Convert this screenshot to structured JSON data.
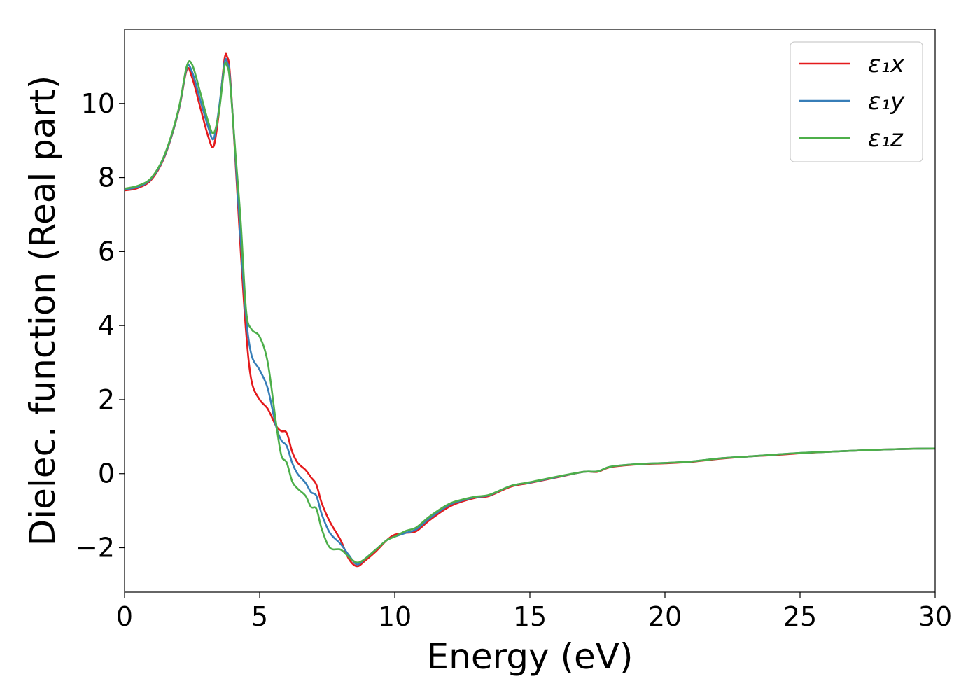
{
  "chart_data": {
    "type": "line",
    "xlabel": "Energy (eV)",
    "ylabel": "Dielec. function (Real part)",
    "xlim": [
      0,
      30
    ],
    "ylim": [
      -3.2,
      12.0
    ],
    "xticks": [
      0,
      5,
      10,
      15,
      20,
      25,
      30
    ],
    "yticks": [
      -2,
      0,
      2,
      4,
      6,
      8,
      10
    ],
    "ytick_labels": [
      "−2",
      "0",
      "2",
      "4",
      "6",
      "8",
      "10"
    ],
    "grid": false,
    "legend_position": "top-right",
    "series": [
      {
        "name": "ε₁x",
        "color": "#e41a1c",
        "points": [
          [
            0,
            7.65
          ],
          [
            0.5,
            7.72
          ],
          [
            1,
            7.95
          ],
          [
            1.5,
            8.6
          ],
          [
            2,
            9.8
          ],
          [
            2.3,
            10.9
          ],
          [
            2.5,
            10.7
          ],
          [
            2.8,
            9.9
          ],
          [
            3.1,
            9.1
          ],
          [
            3.3,
            8.85
          ],
          [
            3.5,
            9.8
          ],
          [
            3.7,
            11.2
          ],
          [
            3.8,
            11.25
          ],
          [
            3.9,
            10.8
          ],
          [
            4.1,
            8.5
          ],
          [
            4.3,
            6.0
          ],
          [
            4.5,
            3.8
          ],
          [
            4.7,
            2.5
          ],
          [
            5.0,
            2.0
          ],
          [
            5.3,
            1.75
          ],
          [
            5.6,
            1.3
          ],
          [
            5.8,
            1.15
          ],
          [
            6.0,
            1.1
          ],
          [
            6.2,
            0.6
          ],
          [
            6.4,
            0.3
          ],
          [
            6.7,
            0.1
          ],
          [
            6.9,
            -0.1
          ],
          [
            7.1,
            -0.3
          ],
          [
            7.3,
            -0.8
          ],
          [
            7.6,
            -1.3
          ],
          [
            8.0,
            -1.8
          ],
          [
            8.3,
            -2.3
          ],
          [
            8.6,
            -2.5
          ],
          [
            8.9,
            -2.35
          ],
          [
            9.3,
            -2.1
          ],
          [
            9.7,
            -1.8
          ],
          [
            10.0,
            -1.65
          ],
          [
            10.4,
            -1.6
          ],
          [
            10.8,
            -1.55
          ],
          [
            11.3,
            -1.25
          ],
          [
            12.0,
            -0.9
          ],
          [
            12.5,
            -0.75
          ],
          [
            13.0,
            -0.65
          ],
          [
            13.5,
            -0.6
          ],
          [
            14.3,
            -0.35
          ],
          [
            15.0,
            -0.25
          ],
          [
            16.0,
            -0.1
          ],
          [
            17.0,
            0.05
          ],
          [
            17.5,
            0.05
          ],
          [
            18.0,
            0.18
          ],
          [
            19.0,
            0.25
          ],
          [
            20.0,
            0.28
          ],
          [
            21.0,
            0.32
          ],
          [
            22.0,
            0.4
          ],
          [
            23.0,
            0.46
          ],
          [
            24.0,
            0.5
          ],
          [
            25.0,
            0.55
          ],
          [
            26.0,
            0.59
          ],
          [
            27.0,
            0.62
          ],
          [
            28.0,
            0.65
          ],
          [
            29.0,
            0.67
          ],
          [
            30.0,
            0.68
          ]
        ]
      },
      {
        "name": "ε₁y",
        "color": "#377eb8",
        "points": [
          [
            0,
            7.68
          ],
          [
            0.5,
            7.75
          ],
          [
            1,
            7.98
          ],
          [
            1.5,
            8.62
          ],
          [
            2,
            9.82
          ],
          [
            2.3,
            10.95
          ],
          [
            2.5,
            10.85
          ],
          [
            2.8,
            10.1
          ],
          [
            3.1,
            9.35
          ],
          [
            3.3,
            9.05
          ],
          [
            3.5,
            9.9
          ],
          [
            3.7,
            11.1
          ],
          [
            3.8,
            11.1
          ],
          [
            3.9,
            10.7
          ],
          [
            4.1,
            8.6
          ],
          [
            4.3,
            6.3
          ],
          [
            4.5,
            4.2
          ],
          [
            4.7,
            3.2
          ],
          [
            5.0,
            2.8
          ],
          [
            5.3,
            2.3
          ],
          [
            5.6,
            1.3
          ],
          [
            5.8,
            0.9
          ],
          [
            6.0,
            0.75
          ],
          [
            6.2,
            0.3
          ],
          [
            6.4,
            0.0
          ],
          [
            6.7,
            -0.25
          ],
          [
            6.9,
            -0.5
          ],
          [
            7.1,
            -0.6
          ],
          [
            7.3,
            -1.1
          ],
          [
            7.6,
            -1.6
          ],
          [
            8.0,
            -1.9
          ],
          [
            8.3,
            -2.2
          ],
          [
            8.6,
            -2.45
          ],
          [
            8.9,
            -2.3
          ],
          [
            9.3,
            -2.05
          ],
          [
            9.7,
            -1.8
          ],
          [
            10.0,
            -1.7
          ],
          [
            10.4,
            -1.6
          ],
          [
            10.8,
            -1.5
          ],
          [
            11.3,
            -1.2
          ],
          [
            12.0,
            -0.85
          ],
          [
            12.5,
            -0.72
          ],
          [
            13.0,
            -0.63
          ],
          [
            13.5,
            -0.58
          ],
          [
            14.3,
            -0.33
          ],
          [
            15.0,
            -0.24
          ],
          [
            16.0,
            -0.09
          ],
          [
            17.0,
            0.05
          ],
          [
            17.5,
            0.06
          ],
          [
            18.0,
            0.19
          ],
          [
            19.0,
            0.26
          ],
          [
            20.0,
            0.29
          ],
          [
            21.0,
            0.33
          ],
          [
            22.0,
            0.41
          ],
          [
            23.0,
            0.46
          ],
          [
            24.0,
            0.51
          ],
          [
            25.0,
            0.56
          ],
          [
            26.0,
            0.59
          ],
          [
            27.0,
            0.62
          ],
          [
            28.0,
            0.65
          ],
          [
            29.0,
            0.67
          ],
          [
            30.0,
            0.68
          ]
        ]
      },
      {
        "name": "ε₁z",
        "color": "#4daf4a",
        "points": [
          [
            0,
            7.7
          ],
          [
            0.5,
            7.78
          ],
          [
            1,
            8.0
          ],
          [
            1.5,
            8.65
          ],
          [
            2,
            9.85
          ],
          [
            2.3,
            11.0
          ],
          [
            2.5,
            11.05
          ],
          [
            2.8,
            10.3
          ],
          [
            3.1,
            9.5
          ],
          [
            3.3,
            9.2
          ],
          [
            3.5,
            9.8
          ],
          [
            3.7,
            11.0
          ],
          [
            3.8,
            11.0
          ],
          [
            3.9,
            10.6
          ],
          [
            4.1,
            8.7
          ],
          [
            4.3,
            6.8
          ],
          [
            4.5,
            4.4
          ],
          [
            4.7,
            3.9
          ],
          [
            5.0,
            3.7
          ],
          [
            5.3,
            3.0
          ],
          [
            5.6,
            1.4
          ],
          [
            5.8,
            0.5
          ],
          [
            6.0,
            0.3
          ],
          [
            6.2,
            -0.2
          ],
          [
            6.4,
            -0.4
          ],
          [
            6.7,
            -0.6
          ],
          [
            6.9,
            -0.9
          ],
          [
            7.1,
            -0.95
          ],
          [
            7.3,
            -1.5
          ],
          [
            7.6,
            -2.0
          ],
          [
            8.0,
            -2.05
          ],
          [
            8.3,
            -2.25
          ],
          [
            8.6,
            -2.4
          ],
          [
            8.9,
            -2.3
          ],
          [
            9.3,
            -2.05
          ],
          [
            9.7,
            -1.8
          ],
          [
            10.0,
            -1.7
          ],
          [
            10.4,
            -1.55
          ],
          [
            10.8,
            -1.45
          ],
          [
            11.3,
            -1.15
          ],
          [
            12.0,
            -0.82
          ],
          [
            12.5,
            -0.7
          ],
          [
            13.0,
            -0.62
          ],
          [
            13.5,
            -0.57
          ],
          [
            14.3,
            -0.33
          ],
          [
            15.0,
            -0.23
          ],
          [
            16.0,
            -0.08
          ],
          [
            17.0,
            0.05
          ],
          [
            17.5,
            0.06
          ],
          [
            18.0,
            0.19
          ],
          [
            19.0,
            0.26
          ],
          [
            20.0,
            0.29
          ],
          [
            21.0,
            0.33
          ],
          [
            22.0,
            0.41
          ],
          [
            23.0,
            0.46
          ],
          [
            24.0,
            0.51
          ],
          [
            25.0,
            0.56
          ],
          [
            26.0,
            0.59
          ],
          [
            27.0,
            0.62
          ],
          [
            28.0,
            0.65
          ],
          [
            29.0,
            0.67
          ],
          [
            30.0,
            0.68
          ]
        ]
      }
    ]
  }
}
